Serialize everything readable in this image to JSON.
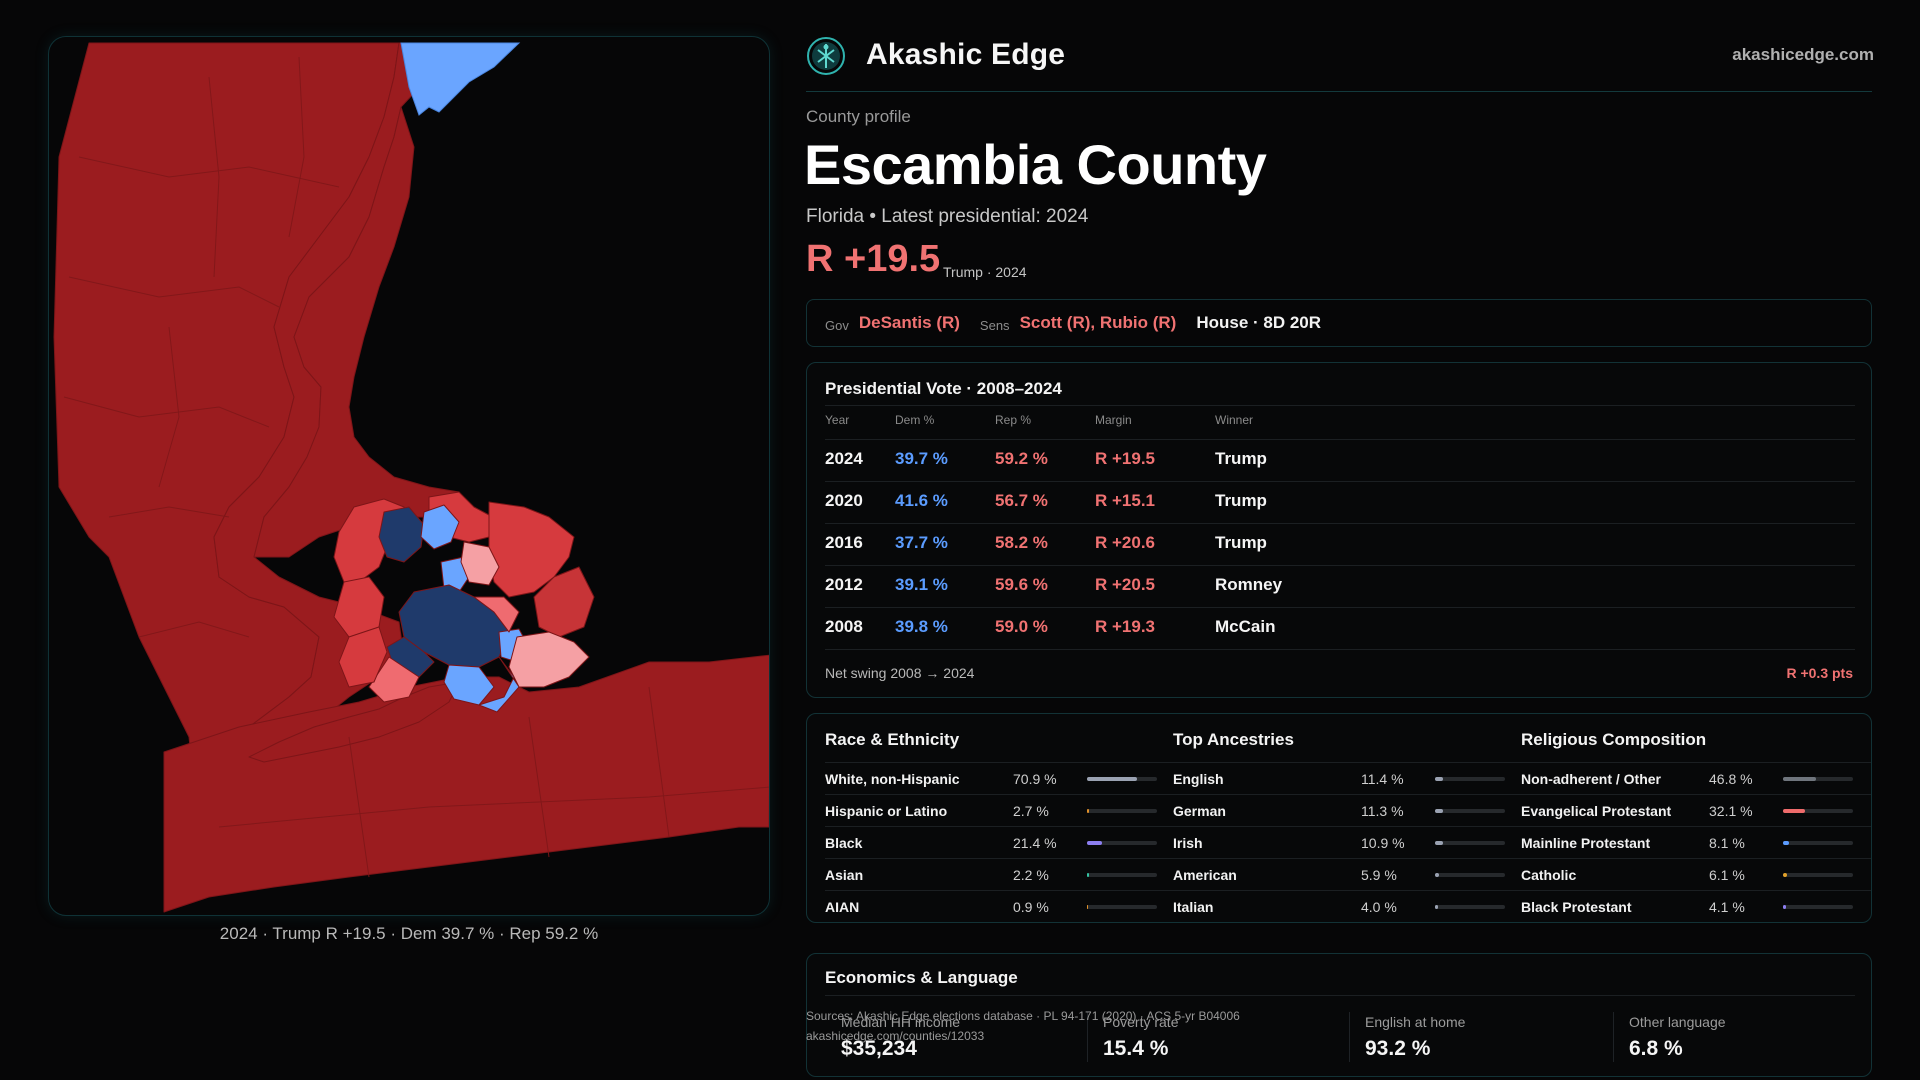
{
  "header": {
    "brand": "Akashic Edge",
    "site": "akashicedge.com"
  },
  "profile": {
    "eyebrow": "County profile",
    "county": "Escambia County",
    "subtitle": "Florida • Latest presidential: 2024",
    "margin": "R +19.5",
    "margin_note": "Trump · 2024"
  },
  "officials": {
    "gov_label": "Gov",
    "gov": "DeSantis (R)",
    "sens_label": "Sens",
    "sens": "Scott (R), Rubio (R)",
    "house": "House · 8D 20R"
  },
  "presidential": {
    "title": "Presidential Vote · 2008–2024",
    "columns": [
      "Year",
      "Dem %",
      "Rep %",
      "Margin",
      "Winner"
    ],
    "rows": [
      {
        "year": "2024",
        "dem": "39.7 %",
        "rep": "59.2 %",
        "margin": "R +19.5",
        "winner": "Trump"
      },
      {
        "year": "2020",
        "dem": "41.6 %",
        "rep": "56.7 %",
        "margin": "R +15.1",
        "winner": "Trump"
      },
      {
        "year": "2016",
        "dem": "37.7 %",
        "rep": "58.2 %",
        "margin": "R +20.6",
        "winner": "Trump"
      },
      {
        "year": "2012",
        "dem": "39.1 %",
        "rep": "59.6 %",
        "margin": "R +20.5",
        "winner": "Romney"
      },
      {
        "year": "2008",
        "dem": "39.8 %",
        "rep": "59.0 %",
        "margin": "R +19.3",
        "winner": "McCain"
      }
    ],
    "swing_label": "Net swing 2008 → 2024",
    "swing_value": "R +0.3 pts"
  },
  "race": {
    "title": "Race & Ethnicity",
    "rows": [
      {
        "name": "White, non-Hispanic",
        "pct": "70.9 %",
        "value": 70.9,
        "color": "#9aa2b2"
      },
      {
        "name": "Hispanic or Latino",
        "pct": "2.7 %",
        "value": 2.7,
        "color": "#e0902a"
      },
      {
        "name": "Black",
        "pct": "21.4 %",
        "value": 21.4,
        "color": "#8c7ef0"
      },
      {
        "name": "Asian",
        "pct": "2.2 %",
        "value": 2.2,
        "color": "#33c2a2"
      },
      {
        "name": "AIAN",
        "pct": "0.9 %",
        "value": 0.9,
        "color": "#e0902a"
      }
    ]
  },
  "ancestry": {
    "title": "Top Ancestries",
    "rows": [
      {
        "name": "English",
        "pct": "11.4 %",
        "value": 11.4,
        "color": "#9aa2b2"
      },
      {
        "name": "German",
        "pct": "11.3 %",
        "value": 11.3,
        "color": "#9aa2b2"
      },
      {
        "name": "Irish",
        "pct": "10.9 %",
        "value": 10.9,
        "color": "#9aa2b2"
      },
      {
        "name": "American",
        "pct": "5.9 %",
        "value": 5.9,
        "color": "#9aa2b2"
      },
      {
        "name": "Italian",
        "pct": "4.0 %",
        "value": 4.0,
        "color": "#9aa2b2"
      }
    ]
  },
  "religion": {
    "title": "Religious Composition",
    "rows": [
      {
        "name": "Non-adherent / Other",
        "pct": "46.8 %",
        "value": 46.8,
        "color": "#6f757d"
      },
      {
        "name": "Evangelical Protestant",
        "pct": "32.1 %",
        "value": 32.1,
        "color": "#ee6b6b"
      },
      {
        "name": "Mainline Protestant",
        "pct": "8.1 %",
        "value": 8.1,
        "color": "#5b9cff"
      },
      {
        "name": "Catholic",
        "pct": "6.1 %",
        "value": 6.1,
        "color": "#e0a02a"
      },
      {
        "name": "Black Protestant",
        "pct": "4.1 %",
        "value": 4.1,
        "color": "#8c7ef0"
      }
    ]
  },
  "economics": {
    "title": "Economics & Language",
    "stats": [
      {
        "label": "Median HH income",
        "value": "$35,234"
      },
      {
        "label": "Poverty rate",
        "value": "15.4 %"
      },
      {
        "label": "English at home",
        "value": "93.2 %"
      },
      {
        "label": "Other language",
        "value": "6.8 %"
      }
    ]
  },
  "sources": {
    "line1": "Sources: Akashic Edge elections database · PL 94-171 (2020) · ACS 5-yr B04006",
    "line2": "akashicedge.com/counties/12033"
  },
  "map": {
    "caption": "2024 · Trump  R +19.5 · Dem 39.7 % · Rep 59.2 %",
    "colors": {
      "safe_rep": "#9b1c1f",
      "likely_rep": "#d63a3e",
      "lean_rep": "#ef6b70",
      "tilt_rep": "#f5a0a4",
      "lean_dem": "#6aa5ff",
      "safe_dem": "#1f3a6b",
      "water": "#060607"
    }
  }
}
